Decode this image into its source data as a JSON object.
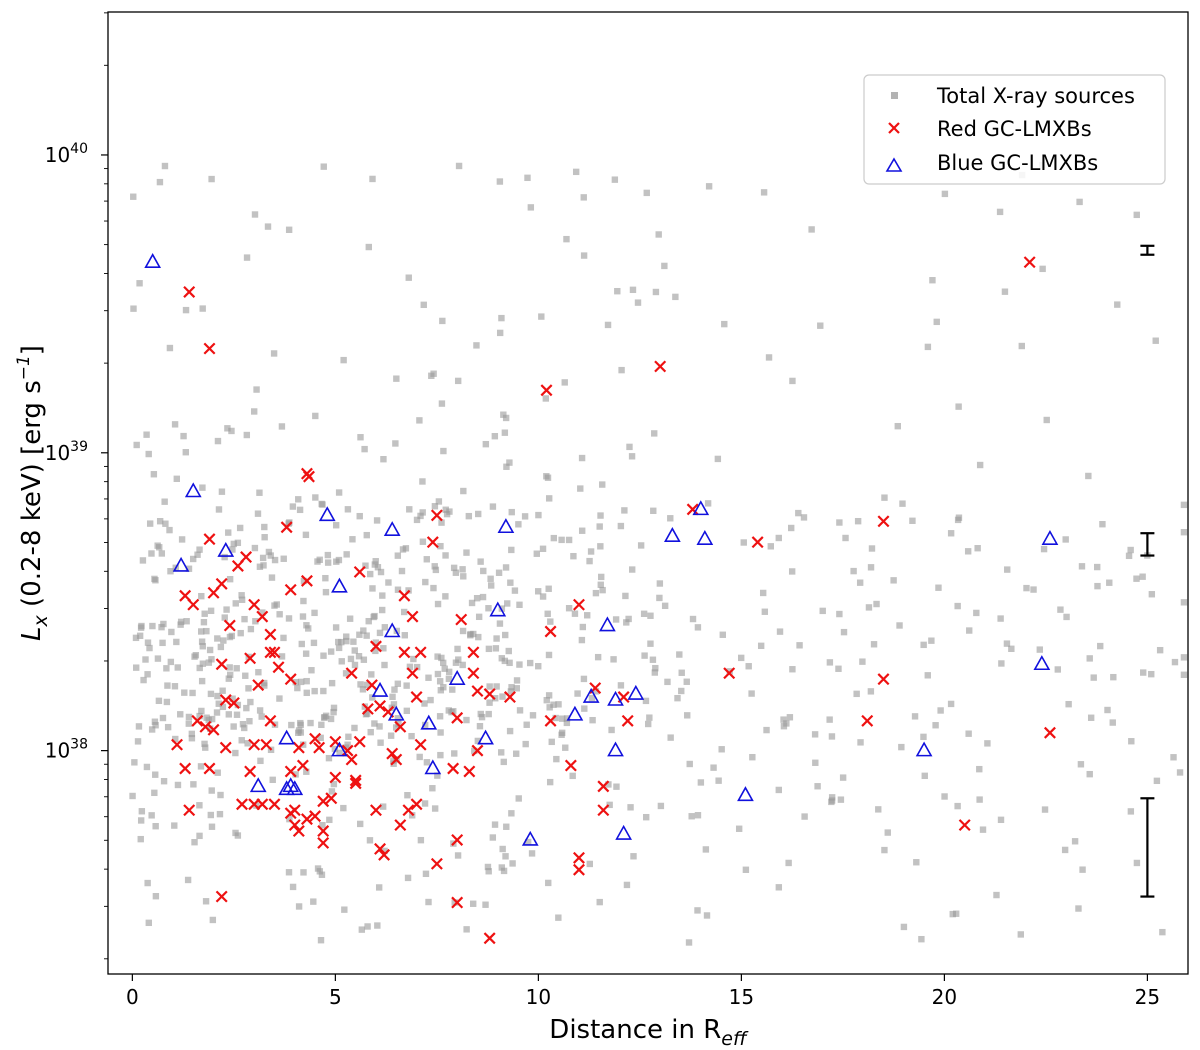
{
  "chart_data": {
    "type": "scatter",
    "xlabel_main": "Distance in R",
    "xlabel_sub": "eff",
    "ylabel_main": "L",
    "ylabel_sub": "x",
    "ylabel_rest": " (0.2-8 keV) [erg s",
    "ylabel_sup": "−1",
    "ylabel_end": "]",
    "xlim": [
      -0.6,
      26
    ],
    "ylim_log10": [
      37.25,
      40.48
    ],
    "xscale": "linear",
    "yscale": "log",
    "x_ticks": [
      0,
      5,
      10,
      15,
      20,
      25
    ],
    "x_tick_labels": [
      "0",
      "5",
      "10",
      "15",
      "20",
      "25"
    ],
    "y_ticks_log10": [
      38,
      39,
      40
    ],
    "y_tick_base": [
      "10",
      "10",
      "10"
    ],
    "y_tick_exp": [
      "38",
      "39",
      "40"
    ],
    "legend_position": "top-right",
    "legend": [
      {
        "label": "Total X-ray sources",
        "marker": "square",
        "color": "#999999"
      },
      {
        "label": "Red GC-LMXBs",
        "marker": "x",
        "color": "#ee1111"
      },
      {
        "label": "Blue GC-LMXBs",
        "marker": "triangle",
        "color": "#1111dd"
      }
    ],
    "error_bars": [
      {
        "x": 25.0,
        "center_log10": 39.68,
        "low_log10": 39.665,
        "high_log10": 39.695
      },
      {
        "x": 25.0,
        "center_log10": 38.69,
        "low_log10": 38.655,
        "high_log10": 38.73
      },
      {
        "x": 25.0,
        "center_log10": 37.68,
        "low_log10": 37.51,
        "high_log10": 37.84
      }
    ],
    "series": [
      {
        "name": "Red GC-LMXBs",
        "marker": "x",
        "color": "#ee1111",
        "points": [
          [
            1.4,
            39.54
          ],
          [
            1.9,
            39.35
          ],
          [
            13.0,
            39.29
          ],
          [
            10.2,
            39.21
          ],
          [
            22.1,
            39.64
          ],
          [
            4.3,
            38.93
          ],
          [
            4.35,
            38.92
          ],
          [
            13.8,
            38.81
          ],
          [
            7.5,
            38.79
          ],
          [
            3.8,
            38.75
          ],
          [
            7.4,
            38.7
          ],
          [
            1.9,
            38.71
          ],
          [
            2.8,
            38.65
          ],
          [
            2.6,
            38.62
          ],
          [
            15.4,
            38.7
          ],
          [
            18.5,
            38.77
          ],
          [
            5.6,
            38.6
          ],
          [
            4.3,
            38.57
          ],
          [
            2.2,
            38.56
          ],
          [
            1.3,
            38.52
          ],
          [
            1.5,
            38.49
          ],
          [
            3.9,
            38.54
          ],
          [
            6.7,
            38.52
          ],
          [
            2.0,
            38.53
          ],
          [
            3.0,
            38.49
          ],
          [
            3.2,
            38.45
          ],
          [
            6.9,
            38.45
          ],
          [
            11.0,
            38.49
          ],
          [
            8.1,
            38.44
          ],
          [
            2.4,
            38.42
          ],
          [
            3.4,
            38.39
          ],
          [
            10.3,
            38.4
          ],
          [
            6.0,
            38.35
          ],
          [
            3.4,
            38.33
          ],
          [
            3.5,
            38.33
          ],
          [
            2.9,
            38.31
          ],
          [
            6.7,
            38.33
          ],
          [
            7.1,
            38.33
          ],
          [
            8.4,
            38.33
          ],
          [
            2.2,
            38.29
          ],
          [
            3.6,
            38.28
          ],
          [
            5.4,
            38.26
          ],
          [
            6.9,
            38.26
          ],
          [
            8.4,
            38.26
          ],
          [
            3.9,
            38.24
          ],
          [
            14.7,
            38.26
          ],
          [
            18.5,
            38.24
          ],
          [
            3.1,
            38.22
          ],
          [
            5.9,
            38.22
          ],
          [
            11.4,
            38.21
          ],
          [
            2.3,
            38.17
          ],
          [
            2.5,
            38.16
          ],
          [
            6.1,
            38.15
          ],
          [
            7.0,
            38.18
          ],
          [
            8.5,
            38.2
          ],
          [
            8.8,
            38.19
          ],
          [
            12.1,
            38.18
          ],
          [
            9.3,
            38.18
          ],
          [
            5.8,
            38.14
          ],
          [
            6.3,
            38.13
          ],
          [
            1.6,
            38.1
          ],
          [
            1.8,
            38.08
          ],
          [
            2.0,
            38.07
          ],
          [
            3.4,
            38.1
          ],
          [
            4.5,
            38.04
          ],
          [
            5.0,
            38.03
          ],
          [
            6.6,
            38.08
          ],
          [
            8.0,
            38.11
          ],
          [
            10.3,
            38.1
          ],
          [
            12.2,
            38.1
          ],
          [
            18.1,
            38.1
          ],
          [
            22.6,
            38.06
          ],
          [
            1.1,
            38.02
          ],
          [
            2.3,
            38.01
          ],
          [
            3.0,
            38.02
          ],
          [
            3.3,
            38.02
          ],
          [
            4.1,
            38.01
          ],
          [
            4.6,
            38.01
          ],
          [
            5.3,
            38.0
          ],
          [
            5.6,
            38.03
          ],
          [
            6.4,
            37.99
          ],
          [
            7.1,
            38.02
          ],
          [
            8.5,
            38.0
          ],
          [
            4.2,
            37.95
          ],
          [
            5.4,
            37.97
          ],
          [
            6.5,
            37.97
          ],
          [
            1.3,
            37.94
          ],
          [
            1.9,
            37.94
          ],
          [
            2.9,
            37.93
          ],
          [
            3.9,
            37.93
          ],
          [
            5.0,
            37.91
          ],
          [
            5.5,
            37.9
          ],
          [
            4.9,
            37.84
          ],
          [
            5.5,
            37.89
          ],
          [
            7.9,
            37.94
          ],
          [
            8.3,
            37.93
          ],
          [
            10.8,
            37.95
          ],
          [
            11.6,
            37.88
          ],
          [
            2.7,
            37.82
          ],
          [
            3.2,
            37.82
          ],
          [
            3.5,
            37.82
          ],
          [
            4.0,
            37.8
          ],
          [
            4.7,
            37.83
          ],
          [
            6.0,
            37.8
          ],
          [
            7.0,
            37.82
          ],
          [
            1.4,
            37.8
          ],
          [
            3.0,
            37.82
          ],
          [
            3.9,
            37.79
          ],
          [
            4.3,
            37.77
          ],
          [
            4.0,
            37.75
          ],
          [
            4.5,
            37.78
          ],
          [
            6.8,
            37.8
          ],
          [
            4.1,
            37.73
          ],
          [
            4.7,
            37.73
          ],
          [
            6.6,
            37.75
          ],
          [
            11.6,
            37.8
          ],
          [
            20.5,
            37.75
          ],
          [
            4.7,
            37.69
          ],
          [
            8.0,
            37.7
          ],
          [
            6.1,
            37.67
          ],
          [
            6.2,
            37.65
          ],
          [
            7.5,
            37.62
          ],
          [
            11.0,
            37.64
          ],
          [
            11.0,
            37.6
          ],
          [
            2.2,
            37.51
          ],
          [
            8.0,
            37.49
          ],
          [
            8.8,
            37.37
          ]
        ]
      },
      {
        "name": "Blue GC-LMXBs",
        "marker": "triangle",
        "color": "#1111dd",
        "points": [
          [
            0.5,
            39.64
          ],
          [
            1.5,
            38.87
          ],
          [
            4.8,
            38.79
          ],
          [
            9.2,
            38.75
          ],
          [
            6.4,
            38.74
          ],
          [
            14.0,
            38.81
          ],
          [
            13.3,
            38.72
          ],
          [
            14.1,
            38.71
          ],
          [
            22.6,
            38.71
          ],
          [
            2.3,
            38.67
          ],
          [
            1.2,
            38.62
          ],
          [
            5.1,
            38.55
          ],
          [
            9.0,
            38.47
          ],
          [
            6.4,
            38.4
          ],
          [
            11.7,
            38.42
          ],
          [
            22.4,
            38.29
          ],
          [
            8.0,
            38.24
          ],
          [
            6.1,
            38.2
          ],
          [
            11.3,
            38.18
          ],
          [
            11.9,
            38.17
          ],
          [
            12.4,
            38.19
          ],
          [
            6.5,
            38.12
          ],
          [
            10.9,
            38.12
          ],
          [
            7.3,
            38.09
          ],
          [
            3.8,
            38.04
          ],
          [
            8.7,
            38.04
          ],
          [
            5.1,
            38.0
          ],
          [
            11.9,
            38.0
          ],
          [
            19.5,
            38.0
          ],
          [
            7.4,
            37.94
          ],
          [
            3.1,
            37.88
          ],
          [
            3.8,
            37.87
          ],
          [
            4.0,
            37.87
          ],
          [
            3.9,
            37.88
          ],
          [
            15.1,
            37.85
          ],
          [
            9.8,
            37.7
          ],
          [
            12.1,
            37.72
          ]
        ]
      }
    ]
  }
}
